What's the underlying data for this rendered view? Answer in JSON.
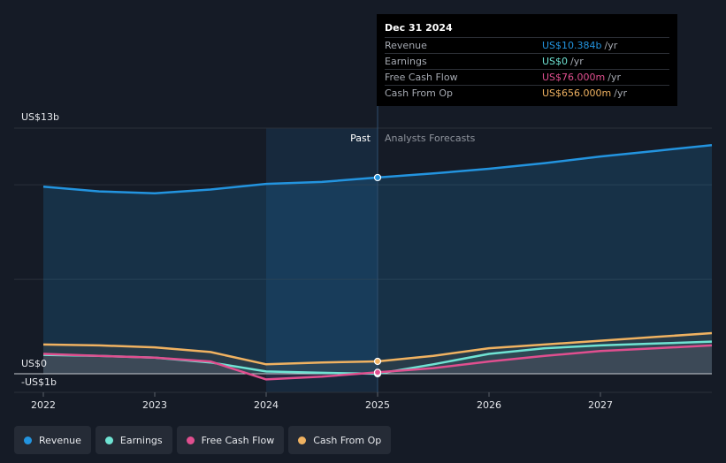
{
  "tooltip": {
    "date": "Dec 31 2024",
    "rows": [
      {
        "label": "Revenue",
        "value": "US$10.384b",
        "unit": "/yr",
        "color": "#2394df"
      },
      {
        "label": "Earnings",
        "value": "US$0",
        "unit": "/yr",
        "color": "#6fe3d3"
      },
      {
        "label": "Free Cash Flow",
        "value": "US$76.000m",
        "unit": "/yr",
        "color": "#e04f8f"
      },
      {
        "label": "Cash From Op",
        "value": "US$656.000m",
        "unit": "/yr",
        "color": "#f0b261"
      }
    ]
  },
  "legend": [
    {
      "label": "Revenue",
      "color": "#2394df"
    },
    {
      "label": "Earnings",
      "color": "#6fe3d3"
    },
    {
      "label": "Free Cash Flow",
      "color": "#e04f8f"
    },
    {
      "label": "Cash From Op",
      "color": "#f0b261"
    }
  ],
  "chart_data": {
    "type": "line",
    "title": "",
    "y_axis_labels": [
      "US$13b",
      "US$0",
      "-US$1b"
    ],
    "ylim": [
      -1,
      13
    ],
    "xlim": [
      2021.78,
      2027.98
    ],
    "x_ticks": [
      2022,
      2023,
      2024,
      2025,
      2026,
      2027
    ],
    "past_label": "Past",
    "forecast_label": "Analysts Forecasts",
    "divider_x": 2025.0,
    "past_highlight_start": 2024.0,
    "series": [
      {
        "name": "Revenue",
        "color": "#2394df",
        "x": [
          2022.0,
          2022.5,
          2023.0,
          2023.5,
          2024.0,
          2024.5,
          2025.0,
          2025.5,
          2026.0,
          2026.5,
          2027.0,
          2027.5,
          2028.0
        ],
        "y": [
          9.9,
          9.65,
          9.55,
          9.75,
          10.05,
          10.15,
          10.384,
          10.6,
          10.85,
          11.15,
          11.5,
          11.8,
          12.1
        ]
      },
      {
        "name": "Earnings",
        "color": "#6fe3d3",
        "x": [
          2022.0,
          2022.5,
          2023.0,
          2023.5,
          2024.0,
          2024.5,
          2025.0,
          2025.5,
          2026.0,
          2026.5,
          2027.0,
          2027.5,
          2028.0
        ],
        "y": [
          1.0,
          0.95,
          0.85,
          0.6,
          0.12,
          0.05,
          0.0,
          0.5,
          1.05,
          1.35,
          1.5,
          1.6,
          1.7
        ]
      },
      {
        "name": "Free Cash Flow",
        "color": "#e04f8f",
        "x": [
          2022.0,
          2022.5,
          2023.0,
          2023.5,
          2024.0,
          2024.5,
          2025.0,
          2025.5,
          2026.0,
          2026.5,
          2027.0,
          2027.5,
          2028.0
        ],
        "y": [
          1.05,
          0.95,
          0.85,
          0.65,
          -0.3,
          -0.15,
          0.076,
          0.3,
          0.65,
          0.95,
          1.2,
          1.35,
          1.5
        ]
      },
      {
        "name": "Cash From Op",
        "color": "#f0b261",
        "x": [
          2022.0,
          2022.5,
          2023.0,
          2023.5,
          2024.0,
          2024.5,
          2025.0,
          2025.5,
          2026.0,
          2026.5,
          2027.0,
          2027.5,
          2028.0
        ],
        "y": [
          1.55,
          1.5,
          1.4,
          1.15,
          0.5,
          0.6,
          0.656,
          0.95,
          1.35,
          1.55,
          1.75,
          1.95,
          2.15
        ]
      }
    ],
    "highlight_x": 2025.0
  }
}
